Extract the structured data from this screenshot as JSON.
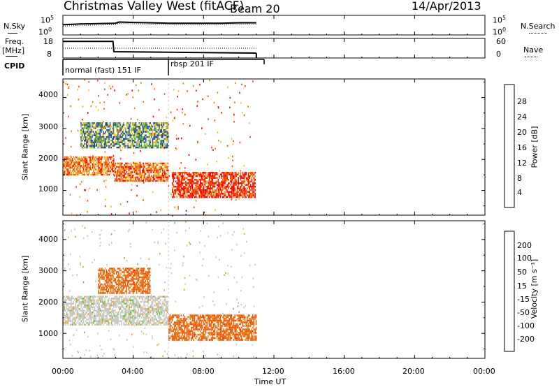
{
  "header": {
    "station": "Christmas Valley West (fitACF)",
    "beam": "Beam 20",
    "date": "14/Apr/2013"
  },
  "panels": {
    "nsky_label": "N.Sky",
    "nsky_tick_top": "10^5",
    "nsky_tick_bottom": "10^0",
    "nsearch_label": "N.Search",
    "nsearch_tick_top": "10^5",
    "nsearch_tick_bottom": "10^0",
    "freq_label_line1": "Freq.",
    "freq_label_line2": "[MHz]",
    "freq_tick_top": "18",
    "freq_tick_bottom": "8",
    "nave_label": "Nave",
    "nave_tick_top": "60",
    "nave_tick_bottom": "0",
    "cpid_label": "CPID",
    "cpid_segments": [
      "normal (fast) 151 IF",
      "rbsp 201 IF"
    ]
  },
  "axes": {
    "ylabel": "Slant Range [km]",
    "xlabel": "Time UT",
    "y_ticks": [
      "1000",
      "2000",
      "3000",
      "4000"
    ],
    "x_ticks": [
      "00:00",
      "04:00",
      "08:00",
      "12:00",
      "16:00",
      "20:00",
      "00:00"
    ]
  },
  "power_colorbar": {
    "label": "Power [dB]",
    "ticks": [
      "4",
      "8",
      "12",
      "16",
      "20",
      "24",
      "28"
    ],
    "colors": [
      "#1010ff",
      "#2040b0",
      "#3a7a5a",
      "#6cc040",
      "#f0c020",
      "#f08000",
      "#ff4000",
      "#ff0000"
    ]
  },
  "velocity_colorbar": {
    "label": "Velocity [m s⁻¹]",
    "ticks": [
      "200",
      "100",
      "50",
      "15",
      "-15",
      "-50",
      "-100",
      "-200"
    ],
    "colors": [
      "#1030c0",
      "#1a50a0",
      "#2a7a5a",
      "#70c040",
      "#c8c8c0",
      "#f0a020",
      "#f06000",
      "#ff3000",
      "#ff0000"
    ]
  },
  "chart_data": [
    {
      "type": "line",
      "panel": "N.Sky / N.Search",
      "x_hours": [
        0.0,
        1.0,
        2.0,
        3.0,
        3.2,
        4.0,
        5.0,
        6.0,
        7.0,
        8.0,
        9.0,
        10.0,
        11.0
      ],
      "nsky_log10": [
        2.6,
        2.8,
        2.9,
        3.0,
        3.3,
        3.2,
        3.1,
        3.0,
        3.0,
        3.0,
        3.0,
        3.1,
        3.1
      ],
      "xlim_hours": [
        0,
        24
      ],
      "ylim_log10": [
        0,
        5
      ]
    },
    {
      "type": "line",
      "panel": "Freq / Nave",
      "x_hours": [
        0.0,
        2.85,
        2.9,
        11.0
      ],
      "freq_mhz": [
        16.5,
        16.5,
        11.2,
        10.5
      ],
      "nave": [
        30,
        30,
        30,
        30
      ],
      "xlim_hours": [
        0,
        24
      ],
      "ylim_freq": [
        8,
        18
      ],
      "ylim_nave": [
        0,
        60
      ]
    },
    {
      "type": "heatmap",
      "panel": "Power",
      "xlabel": "Time UT",
      "ylabel": "Slant Range [km]",
      "xlim_hours": [
        0,
        24
      ],
      "ylim_km": [
        200,
        4600
      ],
      "colorbar": "Power [dB]",
      "clim": [
        0,
        30
      ],
      "regions": [
        {
          "t0": 0.0,
          "t1": 2.9,
          "r0": 1500,
          "r1": 2100,
          "value_db": 26
        },
        {
          "t0": 2.9,
          "t1": 6.0,
          "r0": 1300,
          "r1": 1900,
          "value_db": 24
        },
        {
          "t0": 6.2,
          "t1": 11.0,
          "r0": 800,
          "r1": 1600,
          "value_db": 28
        },
        {
          "t0": 1.0,
          "t1": 6.0,
          "r0": 2400,
          "r1": 3200,
          "value_db": 14
        }
      ]
    },
    {
      "type": "heatmap",
      "panel": "Velocity",
      "xlabel": "Time UT",
      "ylabel": "Slant Range [km]",
      "xlim_hours": [
        0,
        24
      ],
      "ylim_km": [
        200,
        4600
      ],
      "colorbar": "Velocity [m s⁻¹]",
      "clim": [
        -200,
        200
      ],
      "regions": [
        {
          "t0": 0.0,
          "t1": 6.0,
          "r0": 1300,
          "r1": 2200,
          "value_ms": 0
        },
        {
          "t0": 6.0,
          "t1": 11.0,
          "r0": 800,
          "r1": 1600,
          "value_ms": -60
        },
        {
          "t0": 2.0,
          "t1": 5.0,
          "r0": 2300,
          "r1": 3100,
          "value_ms": -80
        }
      ]
    }
  ]
}
